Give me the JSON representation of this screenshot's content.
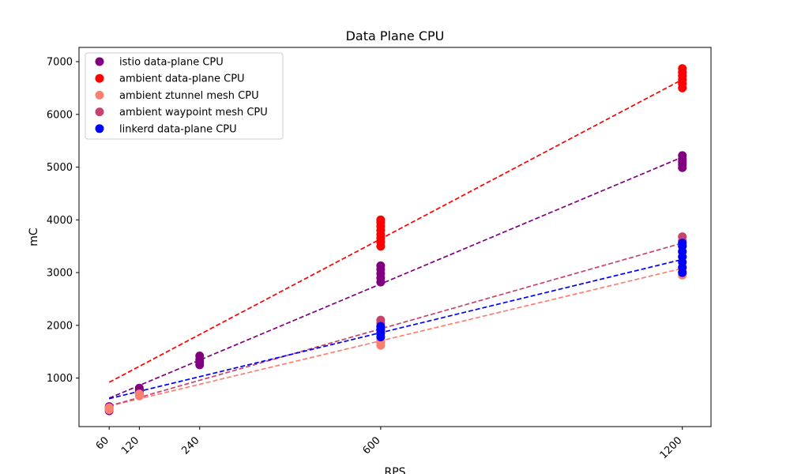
{
  "chart_data": {
    "type": "scatter",
    "title": "Data Plane CPU",
    "xlabel": "RPS",
    "ylabel": "mC",
    "x_ticks": [
      60,
      120,
      240,
      600,
      1200
    ],
    "y_ticks": [
      1000,
      2000,
      3000,
      4000,
      5000,
      6000,
      7000
    ],
    "xlim": [
      0,
      1257
    ],
    "ylim": [
      80,
      7270
    ],
    "grid": false,
    "legend_position": "top-left",
    "series": [
      {
        "name": "istio data-plane CPU",
        "color": "#800080",
        "points": [
          [
            60,
            380
          ],
          [
            60,
            420
          ],
          [
            60,
            460
          ],
          [
            120,
            700
          ],
          [
            120,
            740
          ],
          [
            120,
            780
          ],
          [
            120,
            810
          ],
          [
            240,
            1250
          ],
          [
            240,
            1300
          ],
          [
            240,
            1350
          ],
          [
            240,
            1420
          ],
          [
            600,
            2820
          ],
          [
            600,
            2900
          ],
          [
            600,
            2980
          ],
          [
            600,
            3060
          ],
          [
            600,
            3130
          ],
          [
            1200,
            4990
          ],
          [
            1200,
            5050
          ],
          [
            1200,
            5100
          ],
          [
            1200,
            5150
          ],
          [
            1200,
            5220
          ]
        ],
        "trend": [
          [
            60,
            620
          ],
          [
            1200,
            5190
          ]
        ]
      },
      {
        "name": "ambient data-plane CPU",
        "color": "#ff0000",
        "points": [
          [
            600,
            3500
          ],
          [
            600,
            3580
          ],
          [
            600,
            3650
          ],
          [
            600,
            3720
          ],
          [
            600,
            3800
          ],
          [
            600,
            3880
          ],
          [
            600,
            3950
          ],
          [
            600,
            4000
          ],
          [
            1200,
            6500
          ],
          [
            1200,
            6580
          ],
          [
            1200,
            6660
          ],
          [
            1200,
            6730
          ],
          [
            1200,
            6800
          ],
          [
            1200,
            6870
          ]
        ],
        "trend": [
          [
            60,
            920
          ],
          [
            1200,
            6660
          ]
        ]
      },
      {
        "name": "ambient ztunnel mesh CPU",
        "color": "#fa8072",
        "points": [
          [
            60,
            400
          ],
          [
            60,
            440
          ],
          [
            120,
            660
          ],
          [
            120,
            700
          ],
          [
            600,
            1620
          ],
          [
            600,
            1680
          ],
          [
            600,
            1720
          ],
          [
            1200,
            2950
          ],
          [
            1200,
            3020
          ],
          [
            1200,
            3080
          ]
        ],
        "trend": [
          [
            60,
            470
          ],
          [
            1200,
            3080
          ]
        ]
      },
      {
        "name": "ambient waypoint mesh CPU",
        "color": "#c8436b",
        "points": [
          [
            600,
            1900
          ],
          [
            600,
            1970
          ],
          [
            600,
            2040
          ],
          [
            600,
            2100
          ],
          [
            1200,
            3300
          ],
          [
            1200,
            3400
          ],
          [
            1200,
            3500
          ],
          [
            1200,
            3600
          ],
          [
            1200,
            3680
          ]
        ],
        "trend": [
          [
            60,
            470
          ],
          [
            1200,
            3560
          ]
        ]
      },
      {
        "name": "linkerd data-plane CPU",
        "color": "#0000ff",
        "points": [
          [
            600,
            1780
          ],
          [
            600,
            1850
          ],
          [
            600,
            1920
          ],
          [
            600,
            1980
          ],
          [
            1200,
            3000
          ],
          [
            1200,
            3100
          ],
          [
            1200,
            3200
          ],
          [
            1200,
            3300
          ],
          [
            1200,
            3400
          ],
          [
            1200,
            3500
          ],
          [
            1200,
            3560
          ]
        ],
        "trend": [
          [
            60,
            610
          ],
          [
            1200,
            3250
          ]
        ]
      }
    ]
  }
}
